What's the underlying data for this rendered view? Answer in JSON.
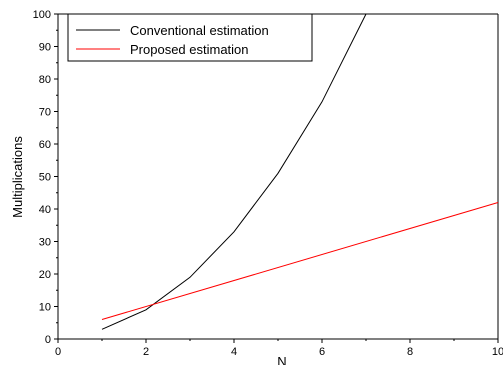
{
  "chart_data": {
    "type": "line",
    "title": "",
    "xlabel": "N",
    "ylabel": "Multiplications",
    "xlim": [
      0,
      10
    ],
    "ylim": [
      0,
      100
    ],
    "x_ticks": [
      0,
      2,
      4,
      6,
      8,
      10
    ],
    "y_ticks": [
      0,
      10,
      20,
      30,
      40,
      50,
      60,
      70,
      80,
      90,
      100
    ],
    "grid": false,
    "legend": "top-left",
    "series": [
      {
        "name": "Conventional estimation",
        "color": "#000000",
        "x": [
          1,
          2,
          3,
          4,
          5,
          6,
          7
        ],
        "y": [
          3,
          9,
          19,
          33,
          51,
          73,
          100
        ]
      },
      {
        "name": "Proposed estimation",
        "color": "#ff0000",
        "x": [
          1,
          10
        ],
        "y": [
          6,
          42
        ]
      }
    ]
  }
}
